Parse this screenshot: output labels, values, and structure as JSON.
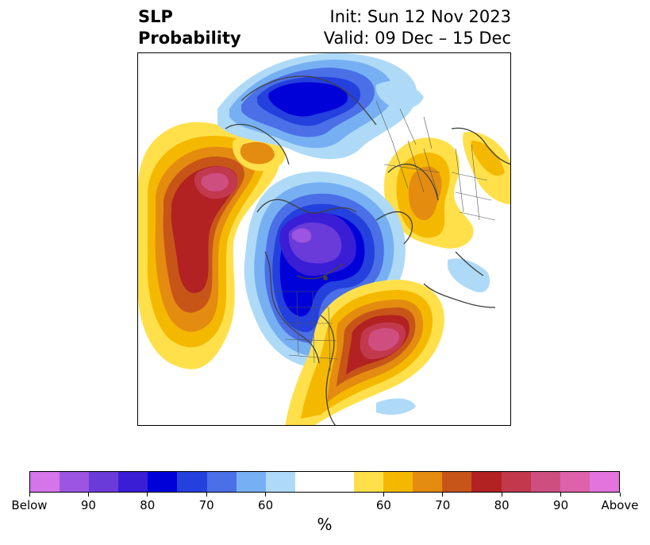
{
  "title": {
    "left_line1": "SLP",
    "left_line2": "Probability",
    "right_line1": "Init: Sun 12 Nov 2023",
    "right_line2": "Valid: 09 Dec – 15 Dec"
  },
  "map": {
    "projection": "north polar stereographic",
    "field": "SLP probability tercile forecast",
    "features": {
      "below_center_arctic": "Below-normal SLP centered over Arctic / Canadian Archipelago",
      "below_center_siberia": "Below-normal SLP over northern Siberia",
      "above_center_north_pacific": "Above-normal SLP over North Pacific / Gulf of Alaska",
      "above_center_north_atlantic": "Above-normal SLP over western North Atlantic / eastern North America",
      "above_center_europe": "Above-normal SLP over northern Europe"
    }
  },
  "colorbar": {
    "unit_label": "%",
    "colors": [
      "#d575ea",
      "#9b55e0",
      "#6a3bd8",
      "#3a1ed6",
      "#0000d8",
      "#2440dd",
      "#4a6fe6",
      "#76b0f2",
      "#aedaf8",
      "#ffffff",
      "#ffffff",
      "#ffe04a",
      "#f5b800",
      "#e38c10",
      "#c75518",
      "#b22222",
      "#c2384d",
      "#cf4e80",
      "#dd62aa",
      "#e374de"
    ],
    "tick_labels": [
      "Below",
      "90",
      "80",
      "70",
      "60",
      "60",
      "70",
      "80",
      "90",
      "Above"
    ]
  }
}
